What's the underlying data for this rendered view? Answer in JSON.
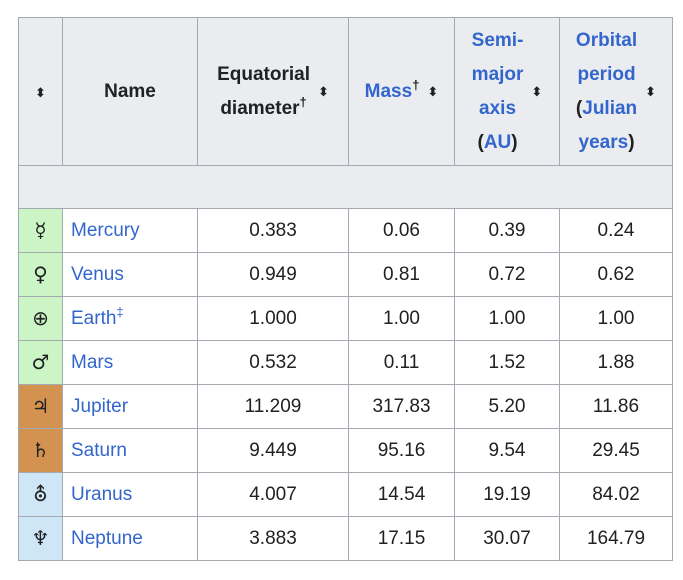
{
  "headers": {
    "sort_icon": "⬍",
    "name": "Name",
    "diameter_line1": "Equatorial",
    "diameter_line2": "diameter",
    "dagger": "†",
    "double_dagger": "‡",
    "mass": "Mass",
    "semi_line1": "Semi-",
    "semi_line2": "major",
    "semi_line3": "axis",
    "semi_line4_open": "(",
    "semi_line4_link": "AU",
    "semi_line4_close": ")",
    "period_line1": "Orbital",
    "period_line2": "period",
    "period_line3_open": "(",
    "period_line3_link": "Julian",
    "period_line4_link": "years",
    "period_line4_close": ")"
  },
  "colors": {
    "terrestrial": "#cbf5c4",
    "gas_giant": "#d39250",
    "ice_giant": "#cfe6f7",
    "header_bg": "#eaecf0",
    "link": "#3366cc",
    "border": "#a2a9b1"
  },
  "planets": [
    {
      "symbol": "☿",
      "name": "Mercury",
      "name_sup": "",
      "diameter": "0.383",
      "mass": "0.06",
      "semi_major_axis": "0.39",
      "period": "0.24",
      "group": "terrestrial"
    },
    {
      "symbol": "♀",
      "name": "Venus",
      "name_sup": "",
      "diameter": "0.949",
      "mass": "0.81",
      "semi_major_axis": "0.72",
      "period": "0.62",
      "group": "terrestrial"
    },
    {
      "symbol": "⊕",
      "name": "Earth",
      "name_sup": "‡",
      "diameter": "1.000",
      "mass": "1.00",
      "semi_major_axis": "1.00",
      "period": "1.00",
      "group": "terrestrial"
    },
    {
      "symbol": "♂",
      "name": "Mars",
      "name_sup": "",
      "diameter": "0.532",
      "mass": "0.11",
      "semi_major_axis": "1.52",
      "period": "1.88",
      "group": "terrestrial"
    },
    {
      "symbol": "♃",
      "name": "Jupiter",
      "name_sup": "",
      "diameter": "11.209",
      "mass": "317.83",
      "semi_major_axis": "5.20",
      "period": "11.86",
      "group": "gas_giant"
    },
    {
      "symbol": "♄",
      "name": "Saturn",
      "name_sup": "",
      "diameter": "9.449",
      "mass": "95.16",
      "semi_major_axis": "9.54",
      "period": "29.45",
      "group": "gas_giant"
    },
    {
      "symbol": "⛢",
      "name": "Uranus",
      "name_sup": "",
      "diameter": "4.007",
      "mass": "14.54",
      "semi_major_axis": "19.19",
      "period": "84.02",
      "group": "ice_giant"
    },
    {
      "symbol": "♆",
      "name": "Neptune",
      "name_sup": "",
      "diameter": "3.883",
      "mass": "17.15",
      "semi_major_axis": "30.07",
      "period": "164.79",
      "group": "ice_giant"
    }
  ]
}
